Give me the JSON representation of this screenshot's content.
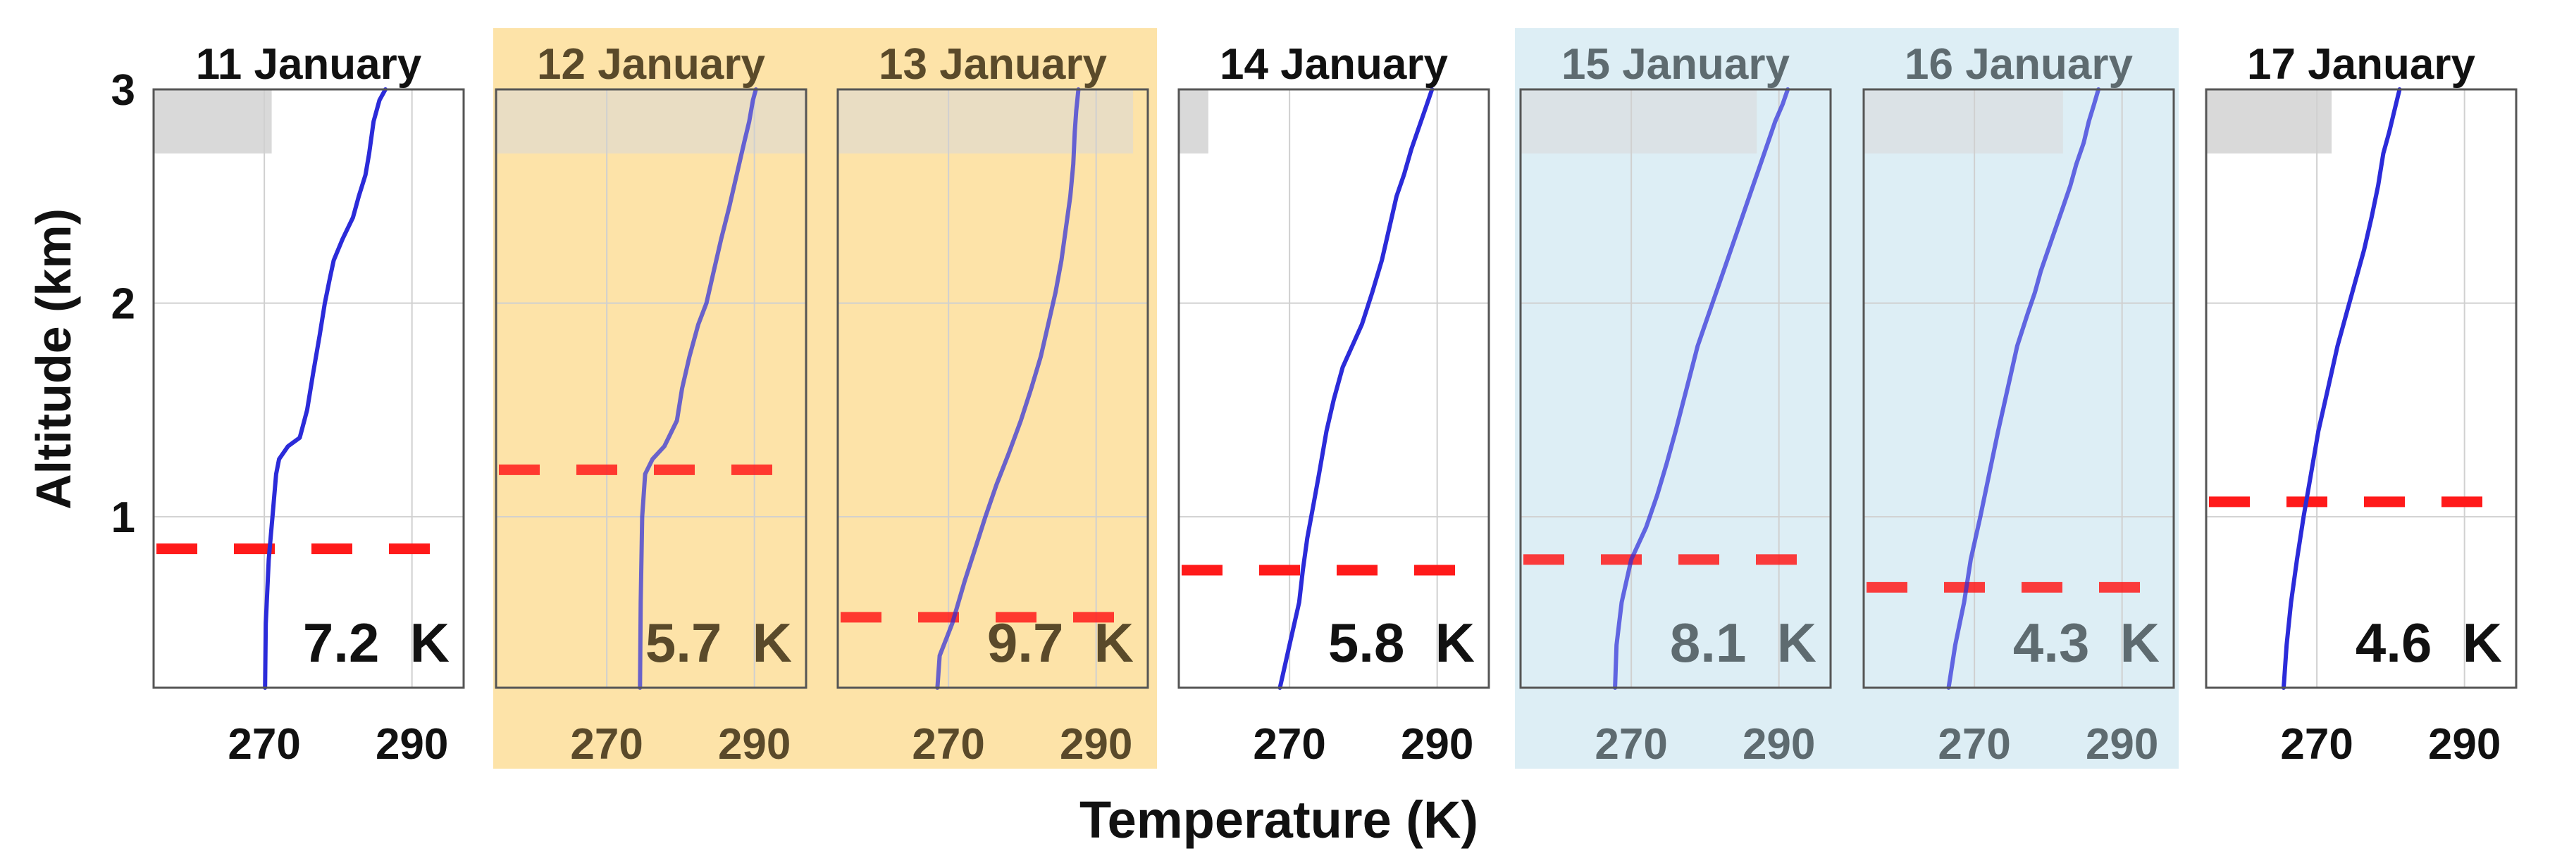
{
  "figure": {
    "xlabel": "Temperature (K)",
    "ylabel": "Altitude (km)"
  },
  "colors": {
    "profile_line": "#2B2BD9",
    "inversion_dash": "#FF1A1A",
    "shading_gray": "#D9D9D9",
    "highlight_orange": "#FDE3A8",
    "highlight_blue": "#DDEEF5",
    "grid": "#D0D0D0"
  },
  "chart_data": [
    {
      "type": "line",
      "title": "11 January",
      "xlabel": "",
      "ylabel": "Altitude (km)",
      "xlim": [
        255,
        297
      ],
      "ylim": [
        0.2,
        3
      ],
      "xticks": [
        270,
        290
      ],
      "yticks": [
        1,
        2,
        3
      ],
      "grid": true,
      "highlight": "none",
      "label": "7.2 K",
      "dashed_line_altitude": 0.85,
      "gray_band": {
        "x": [
          255,
          271
        ],
        "y": [
          2.7,
          3
        ]
      },
      "series": [
        {
          "x": [
            270.1,
            270.2,
            270.6,
            271.1,
            271.6,
            272.0,
            273.2,
            274.8,
            275.8,
            276.6,
            277.5,
            278.2,
            278.9,
            279.4,
            280.6,
            282.0,
            282.8,
            283.7,
            284.2,
            284.8,
            285.6,
            286.4
          ],
          "y": [
            0.2,
            0.5,
            0.8,
            1.0,
            1.2,
            1.27,
            1.33,
            1.37,
            1.5,
            1.67,
            1.85,
            2.0,
            2.12,
            2.2,
            2.3,
            2.4,
            2.5,
            2.6,
            2.7,
            2.85,
            2.95,
            3.0
          ]
        }
      ]
    },
    {
      "type": "line",
      "title": "12 January",
      "xlabel": "",
      "ylabel": "",
      "xlim": [
        255,
        297
      ],
      "ylim": [
        0.2,
        3
      ],
      "xticks": [
        270,
        290
      ],
      "yticks": [
        1,
        2,
        3
      ],
      "grid": true,
      "highlight": "orange",
      "label": "5.7 K",
      "dashed_line_altitude": 1.22,
      "gray_band": {
        "x": [
          255,
          297
        ],
        "y": [
          2.7,
          3
        ]
      },
      "series": [
        {
          "x": [
            274.5,
            274.6,
            274.8,
            275.2,
            276.2,
            277.8,
            279.5,
            280.2,
            281.2,
            282.4,
            283.5,
            284.5,
            285.5,
            286.6,
            287.6,
            288.6,
            289.3,
            289.8,
            290.2
          ],
          "y": [
            0.2,
            0.6,
            1.0,
            1.2,
            1.27,
            1.33,
            1.45,
            1.6,
            1.75,
            1.9,
            2.0,
            2.15,
            2.3,
            2.45,
            2.6,
            2.75,
            2.85,
            2.95,
            3.0
          ]
        }
      ]
    },
    {
      "type": "line",
      "title": "13 January",
      "xlabel": "",
      "ylabel": "",
      "xlim": [
        255,
        297
      ],
      "ylim": [
        0.2,
        3
      ],
      "xticks": [
        270,
        290
      ],
      "yticks": [
        1,
        2,
        3
      ],
      "grid": true,
      "highlight": "orange",
      "label": "9.7 K",
      "dashed_line_altitude": 0.53,
      "gray_band": {
        "x": [
          255,
          295
        ],
        "y": [
          2.7,
          3
        ]
      },
      "series": [
        {
          "x": [
            268.5,
            268.8,
            270.5,
            272.2,
            273.6,
            275.0,
            276.5,
            278.2,
            279.8,
            281.2,
            282.5,
            283.5,
            284.5,
            285.3,
            285.9,
            286.5,
            286.9,
            287.1,
            287.3,
            287.6
          ],
          "y": [
            0.2,
            0.35,
            0.5,
            0.7,
            0.85,
            1.0,
            1.15,
            1.3,
            1.45,
            1.6,
            1.75,
            1.9,
            2.05,
            2.2,
            2.35,
            2.5,
            2.65,
            2.8,
            2.9,
            3.0
          ]
        }
      ]
    },
    {
      "type": "line",
      "title": "14 January",
      "xlabel": "",
      "ylabel": "",
      "xlim": [
        255,
        297
      ],
      "ylim": [
        0.2,
        3
      ],
      "xticks": [
        270,
        290
      ],
      "yticks": [
        1,
        2,
        3
      ],
      "grid": true,
      "highlight": "none",
      "label": "5.8 K",
      "dashed_line_altitude": 0.75,
      "gray_band": {
        "x": [
          255,
          259
        ],
        "y": [
          2.7,
          3
        ]
      },
      "series": [
        {
          "x": [
            268.7,
            270.0,
            271.3,
            271.8,
            272.4,
            273.2,
            274.0,
            275.0,
            276.0,
            277.2,
            278.5,
            279.8,
            281.2,
            282.5,
            283.5,
            284.5,
            285.5,
            286.5,
            287.5,
            288.5,
            289.3
          ],
          "y": [
            0.2,
            0.4,
            0.6,
            0.75,
            0.9,
            1.05,
            1.2,
            1.4,
            1.55,
            1.7,
            1.8,
            1.9,
            2.05,
            2.2,
            2.35,
            2.5,
            2.6,
            2.72,
            2.82,
            2.92,
            3.0
          ]
        }
      ]
    },
    {
      "type": "line",
      "title": "15 January",
      "xlabel": "",
      "ylabel": "",
      "xlim": [
        255,
        297
      ],
      "ylim": [
        0.2,
        3
      ],
      "xticks": [
        270,
        290
      ],
      "yticks": [
        1,
        2,
        3
      ],
      "grid": true,
      "highlight": "blue",
      "label": "8.1 K",
      "dashed_line_altitude": 0.8,
      "gray_band": {
        "x": [
          255,
          287
        ],
        "y": [
          2.7,
          3
        ]
      },
      "series": [
        {
          "x": [
            267.8,
            268.0,
            268.7,
            270.0,
            272.0,
            273.5,
            274.8,
            276.0,
            277.5,
            279.0,
            280.5,
            282.0,
            283.5,
            285.0,
            286.5,
            287.5,
            288.5,
            289.5,
            290.5,
            291.2
          ],
          "y": [
            0.2,
            0.4,
            0.6,
            0.8,
            0.95,
            1.1,
            1.25,
            1.4,
            1.6,
            1.8,
            1.95,
            2.1,
            2.25,
            2.4,
            2.55,
            2.65,
            2.75,
            2.85,
            2.93,
            3.0
          ]
        }
      ]
    },
    {
      "type": "line",
      "title": "16 January",
      "xlabel": "",
      "ylabel": "",
      "xlim": [
        255,
        297
      ],
      "ylim": [
        0.2,
        3
      ],
      "xticks": [
        270,
        290
      ],
      "yticks": [
        1,
        2,
        3
      ],
      "grid": true,
      "highlight": "blue",
      "label": "4.3 K",
      "dashed_line_altitude": 0.67,
      "gray_band": {
        "x": [
          255,
          282
        ],
        "y": [
          2.7,
          3
        ]
      },
      "series": [
        {
          "x": [
            266.5,
            267.4,
            268.6,
            269.5,
            270.8,
            272.0,
            273.2,
            274.5,
            275.8,
            277.2,
            278.2,
            279.0,
            280.5,
            282.0,
            283.0,
            283.8,
            284.8,
            285.5,
            286.2,
            286.8
          ],
          "y": [
            0.2,
            0.4,
            0.6,
            0.8,
            1.0,
            1.2,
            1.4,
            1.6,
            1.8,
            1.95,
            2.05,
            2.15,
            2.3,
            2.45,
            2.55,
            2.65,
            2.75,
            2.85,
            2.93,
            3.0
          ]
        }
      ]
    },
    {
      "type": "line",
      "title": "17 January",
      "xlabel": "",
      "ylabel": "",
      "xlim": [
        255,
        297
      ],
      "ylim": [
        0.2,
        3
      ],
      "xticks": [
        270,
        290
      ],
      "yticks": [
        1,
        2,
        3
      ],
      "grid": true,
      "highlight": "none",
      "label": "4.6 K",
      "dashed_line_altitude": 1.07,
      "gray_band": {
        "x": [
          255,
          272
        ],
        "y": [
          2.7,
          3
        ]
      },
      "series": [
        {
          "x": [
            265.5,
            265.9,
            266.5,
            267.3,
            268.2,
            269.2,
            270.2,
            271.5,
            272.8,
            274.0,
            275.2,
            276.4,
            277.4,
            278.3,
            279.0,
            279.8,
            280.5,
            281.2
          ],
          "y": [
            0.2,
            0.4,
            0.6,
            0.8,
            1.0,
            1.2,
            1.4,
            1.6,
            1.8,
            1.95,
            2.1,
            2.25,
            2.4,
            2.55,
            2.7,
            2.8,
            2.9,
            3.0
          ]
        }
      ]
    }
  ]
}
